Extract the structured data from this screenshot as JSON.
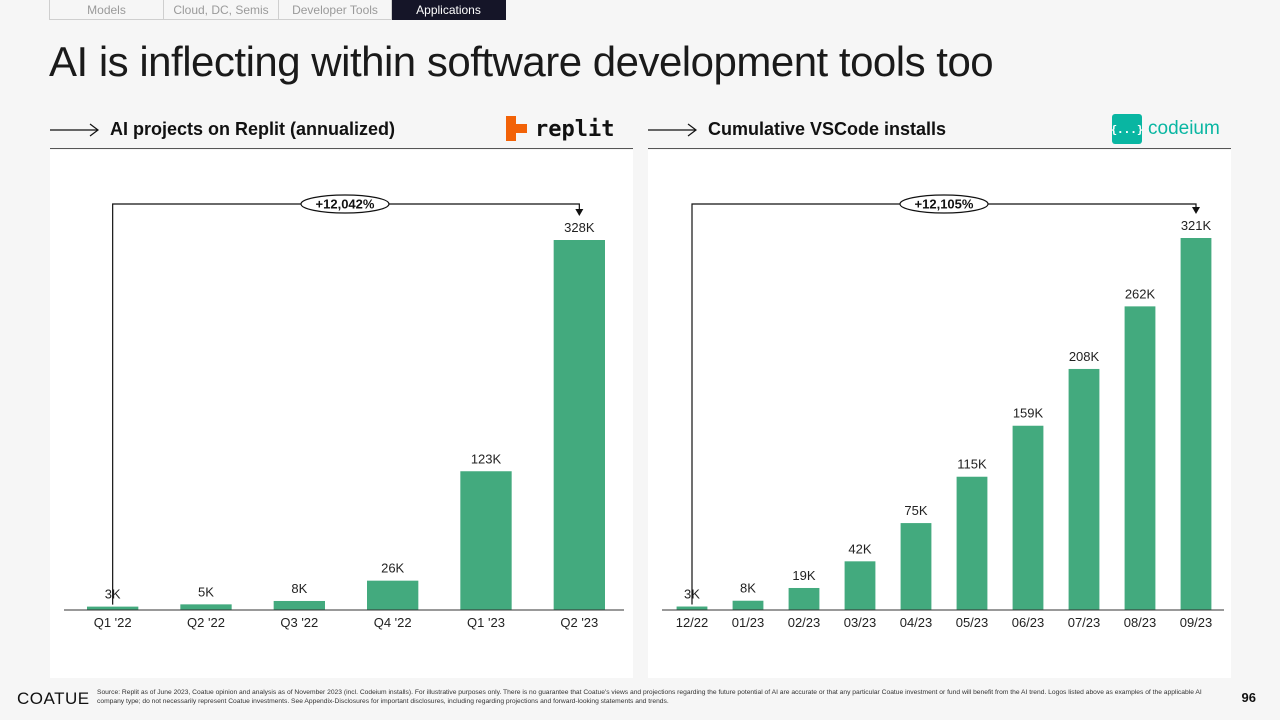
{
  "nav": {
    "tabs": [
      {
        "label": "Models",
        "active": false
      },
      {
        "label": "Cloud, DC, Semis",
        "active": false
      },
      {
        "label": "Developer Tools",
        "active": false
      },
      {
        "label": "Applications",
        "active": true
      }
    ]
  },
  "page": {
    "title": "AI is inflecting within software development tools too",
    "brand": "COATUE",
    "page_number": "96",
    "source_note": "Source: Replit as of June 2023, Coatue opinion and analysis as of November 2023 (incl. Codeium installs). For illustrative purposes only. There is no guarantee that Coatue's views and projections regarding the future potential of AI are accurate or that any particular Coatue investment or fund will benefit from the AI trend. Logos listed above as examples of the applicable AI company type; do not necessarily represent Coatue investments. See Appendix-Disclosures for important disclosures, including regarding projections and forward-looking statements and trends."
  },
  "colors": {
    "bar": "#43aa7e",
    "nav_active": "#151528",
    "codeium": "#09b6a2",
    "replit_orange": "#f26207"
  },
  "logos": {
    "replit": {
      "text": "replit",
      "icon": "replit-logo-icon"
    },
    "codeium": {
      "text": "codeium",
      "icon_text": "{...}",
      "icon": "codeium-logo-icon"
    }
  },
  "chart_data": [
    {
      "type": "bar",
      "title": "AI projects on Replit (annualized)",
      "categories": [
        "Q1 '22",
        "Q2 '22",
        "Q3 '22",
        "Q4 '22",
        "Q1 '23",
        "Q2 '23"
      ],
      "values": [
        3,
        5,
        8,
        26,
        123,
        328
      ],
      "value_labels": [
        "3K",
        "5K",
        "8K",
        "26K",
        "123K",
        "328K"
      ],
      "unit": "K",
      "annotation": "+12,042%"
    },
    {
      "type": "bar",
      "title": "Cumulative VSCode installs",
      "categories": [
        "12/22",
        "01/23",
        "02/23",
        "03/23",
        "04/23",
        "05/23",
        "06/23",
        "07/23",
        "08/23",
        "09/23"
      ],
      "values": [
        3,
        8,
        19,
        42,
        75,
        115,
        159,
        208,
        262,
        321
      ],
      "value_labels": [
        "3K",
        "8K",
        "19K",
        "42K",
        "75K",
        "115K",
        "159K",
        "208K",
        "262K",
        "321K"
      ],
      "unit": "K",
      "annotation": "+12,105%"
    }
  ]
}
